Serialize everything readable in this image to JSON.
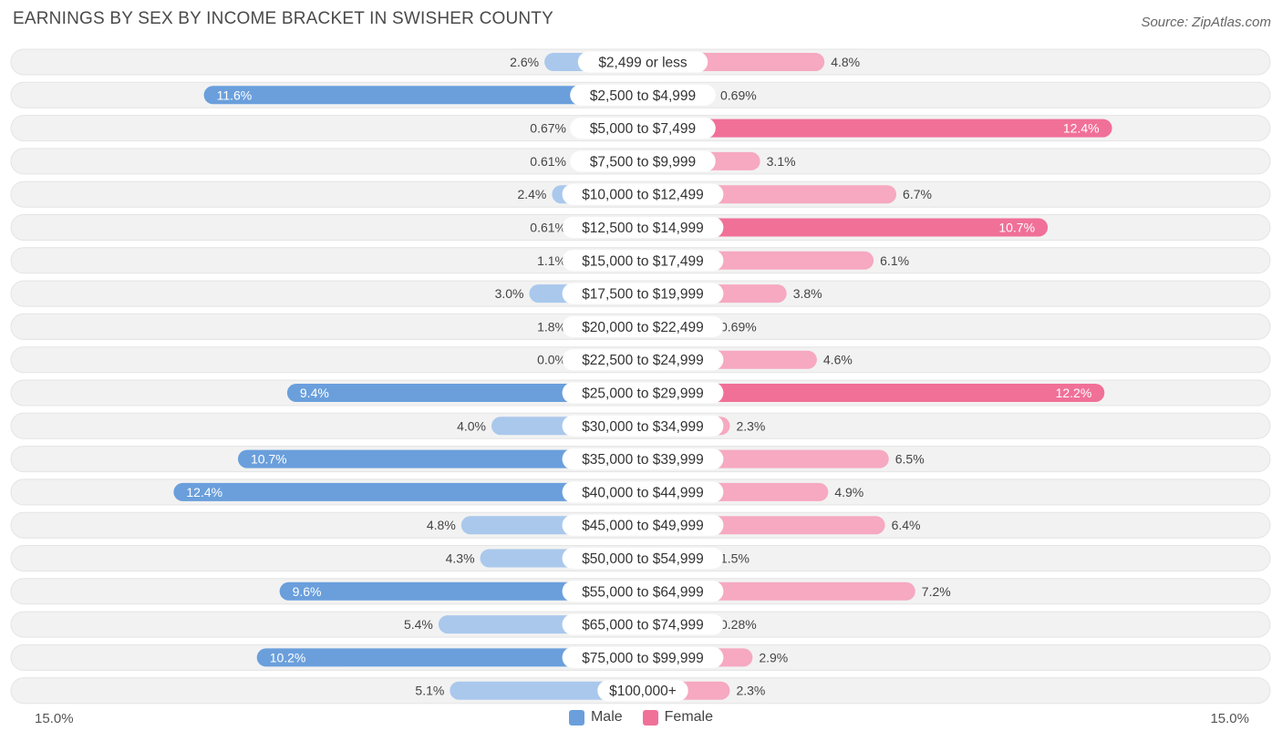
{
  "title": "EARNINGS BY SEX BY INCOME BRACKET IN SWISHER COUNTY",
  "source": "Source: ZipAtlas.com",
  "axis": {
    "left_label": "15.0%",
    "right_label": "15.0%"
  },
  "legend": [
    {
      "name": "Male",
      "color": "#6a9fdc"
    },
    {
      "name": "Female",
      "color": "#f07098"
    }
  ],
  "colors": {
    "male_strong": "#6a9fdc",
    "male_light": "#a9c8ec",
    "female_strong": "#f07098",
    "female_light": "#f6a9c1",
    "row_bg": "#f2f2f2"
  },
  "chart_data": {
    "type": "bar",
    "orientation": "horizontal-diverging",
    "title": "EARNINGS BY SEX BY INCOME BRACKET IN SWISHER COUNTY",
    "xlim": [
      -15.0,
      15.0
    ],
    "unit": "%",
    "categories": [
      "$2,499 or less",
      "$2,500 to $4,999",
      "$5,000 to $7,499",
      "$7,500 to $9,999",
      "$10,000 to $12,499",
      "$12,500 to $14,999",
      "$15,000 to $17,499",
      "$17,500 to $19,999",
      "$20,000 to $22,499",
      "$22,500 to $24,999",
      "$25,000 to $29,999",
      "$30,000 to $34,999",
      "$35,000 to $39,999",
      "$40,000 to $44,999",
      "$45,000 to $49,999",
      "$50,000 to $54,999",
      "$55,000 to $64,999",
      "$65,000 to $74,999",
      "$75,000 to $99,999",
      "$100,000+"
    ],
    "series": [
      {
        "name": "Male",
        "values": [
          2.6,
          11.6,
          0.67,
          0.61,
          2.4,
          0.61,
          1.1,
          3.0,
          1.8,
          0.0,
          9.4,
          4.0,
          10.7,
          12.4,
          4.8,
          4.3,
          9.6,
          5.4,
          10.2,
          5.1
        ],
        "labels": [
          "2.6%",
          "11.6%",
          "0.67%",
          "0.61%",
          "2.4%",
          "0.61%",
          "1.1%",
          "3.0%",
          "1.8%",
          "0.0%",
          "9.4%",
          "4.0%",
          "10.7%",
          "12.4%",
          "4.8%",
          "4.3%",
          "9.6%",
          "5.4%",
          "10.2%",
          "5.1%"
        ]
      },
      {
        "name": "Female",
        "values": [
          4.8,
          0.69,
          12.4,
          3.1,
          6.7,
          10.7,
          6.1,
          3.8,
          0.69,
          4.6,
          12.2,
          2.3,
          6.5,
          4.9,
          6.4,
          1.5,
          7.2,
          0.28,
          2.9,
          2.3
        ],
        "labels": [
          "4.8%",
          "0.69%",
          "12.4%",
          "3.1%",
          "6.7%",
          "10.7%",
          "6.1%",
          "3.8%",
          "0.69%",
          "4.6%",
          "12.2%",
          "2.3%",
          "6.5%",
          "4.9%",
          "6.4%",
          "1.5%",
          "7.2%",
          "0.28%",
          "2.9%",
          "2.3%"
        ]
      }
    ]
  }
}
